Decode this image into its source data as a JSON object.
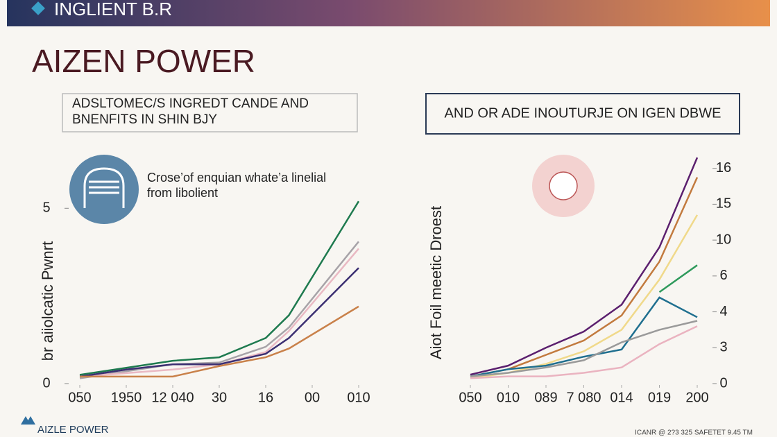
{
  "header": {
    "brand": "INGLIENT B.R"
  },
  "title": "AIZEN POWER",
  "left_box": {
    "lines": [
      "ADSLTOMEC/S INGREDT CANDE AND",
      "BNENFITS IN SHIN BJY"
    ]
  },
  "right_box": {
    "text": "AND OR ADE INOUTURJE ON IGEN DBWE"
  },
  "caption": {
    "lines": [
      "Crose’of enquian whate’a linelial",
      "from libolient"
    ]
  },
  "footer": {
    "brand": "AIZLE POWER",
    "note": "ICANR @ 2?3 325 SAFETET 9.45 TM"
  },
  "chart_data": [
    {
      "type": "line",
      "y_label": "br aiiolcatic Pwnrt",
      "y_axis_position": "left",
      "x": [
        0,
        1,
        2,
        3,
        4,
        4.5,
        6
      ],
      "xlim": [
        0,
        6
      ],
      "xticks": [
        {
          "value": 0,
          "label": "050"
        },
        {
          "value": 1,
          "label": "1950"
        },
        {
          "value": 2,
          "label": "12 040"
        },
        {
          "value": 3,
          "label": "30"
        },
        {
          "value": 4,
          "label": "16"
        },
        {
          "value": 5,
          "label": "00"
        },
        {
          "value": 6,
          "label": "010"
        }
      ],
      "ylim": [
        0,
        5.5
      ],
      "yticks": [
        0,
        5
      ],
      "series": [
        {
          "color": "#1e7a4f",
          "values": [
            0.25,
            0.45,
            0.65,
            0.75,
            1.3,
            1.95,
            5.2
          ]
        },
        {
          "color": "#a7a3a8",
          "values": [
            0.15,
            0.35,
            0.55,
            0.6,
            1.05,
            1.6,
            4.05
          ]
        },
        {
          "color": "#e9b9c3",
          "values": [
            0.2,
            0.3,
            0.4,
            0.55,
            0.9,
            1.5,
            3.85
          ]
        },
        {
          "color": "#3b2f72",
          "values": [
            0.2,
            0.4,
            0.55,
            0.55,
            0.85,
            1.3,
            3.3
          ]
        },
        {
          "color": "#c9814a",
          "values": [
            0.2,
            0.2,
            0.2,
            0.5,
            0.75,
            1.0,
            2.2
          ]
        }
      ]
    },
    {
      "type": "line",
      "y_label": "Aiot Foil meetic Droest",
      "y_axis_position": "right",
      "x": [
        0,
        1,
        2,
        3,
        4,
        5,
        6
      ],
      "xlim": [
        0,
        6
      ],
      "xticks": [
        {
          "value": 0,
          "label": "050"
        },
        {
          "value": 1,
          "label": "010"
        },
        {
          "value": 2,
          "label": "089"
        },
        {
          "value": 3,
          "label": "7 080"
        },
        {
          "value": 4,
          "label": "014"
        },
        {
          "value": 5,
          "label": "019"
        },
        {
          "value": 6,
          "label": "200"
        }
      ],
      "ylim": [
        0,
        6.4
      ],
      "yticks": [
        0,
        {
          "value": 1,
          "label": "3"
        },
        {
          "value": 2,
          "label": "4"
        },
        {
          "value": 3,
          "label": "6"
        },
        {
          "value": 4,
          "label": "10"
        },
        {
          "value": 5,
          "label": "15"
        },
        {
          "value": 6,
          "label": "16"
        }
      ],
      "series": [
        {
          "color": "#5b1f6e",
          "values": [
            0.25,
            0.5,
            1.0,
            1.45,
            2.2,
            3.8,
            6.3
          ]
        },
        {
          "color": "#c27a3e",
          "values": [
            0.2,
            0.4,
            0.8,
            1.2,
            1.9,
            3.4,
            5.75
          ]
        },
        {
          "color": "#f0d98a",
          "values": [
            0.15,
            0.3,
            0.55,
            0.9,
            1.5,
            2.9,
            4.7
          ]
        },
        {
          "color": "#1f6f8f",
          "values": [
            0.2,
            0.4,
            0.5,
            0.75,
            0.95,
            2.4,
            1.85
          ]
        },
        {
          "color": "#2f9a5c",
          "values": [
            null,
            null,
            null,
            null,
            null,
            2.55,
            3.3
          ]
        },
        {
          "color": "#9a9a9a",
          "values": [
            0.2,
            0.3,
            0.45,
            0.65,
            1.15,
            1.5,
            1.75
          ]
        },
        {
          "color": "#eab3c0",
          "values": [
            0.15,
            0.2,
            0.2,
            0.3,
            0.45,
            1.1,
            1.6
          ]
        }
      ]
    }
  ]
}
